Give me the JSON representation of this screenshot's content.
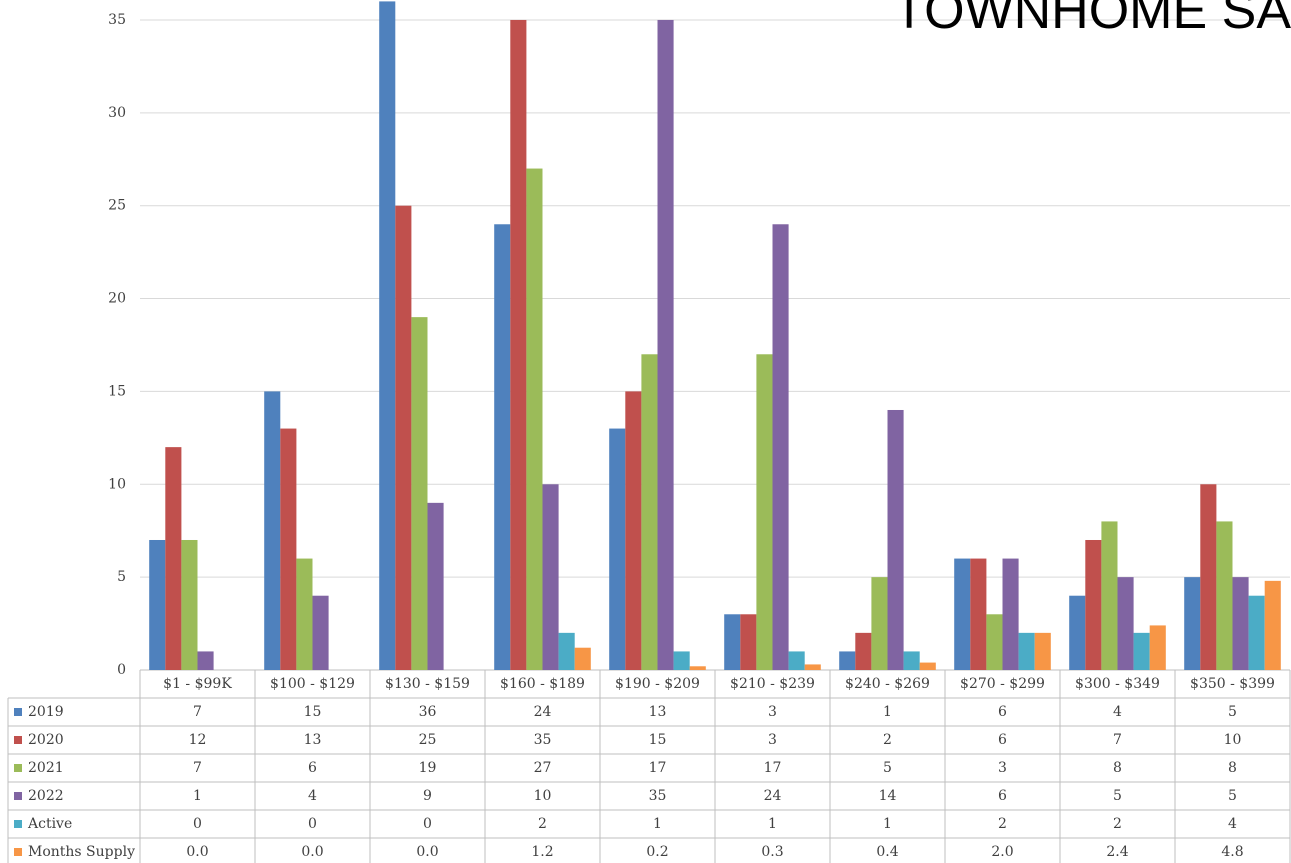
{
  "chart_data": {
    "type": "bar",
    "title": "TOWNHOME SA",
    "categories": [
      "$1 - $99K",
      "$100 - $129",
      "$130 - $159",
      "$160 - $189",
      "$190 - $209",
      "$210 - $239",
      "$240 - $269",
      "$270 - $299",
      "$300 - $349",
      "$350 - $399"
    ],
    "series": [
      {
        "name": "2019",
        "color": "#4f81bd",
        "values": [
          7,
          15,
          36,
          24,
          13,
          3,
          1,
          6,
          4,
          5
        ]
      },
      {
        "name": "2020",
        "color": "#c0504d",
        "values": [
          12,
          13,
          25,
          35,
          15,
          3,
          2,
          6,
          7,
          10
        ]
      },
      {
        "name": "2021",
        "color": "#9bbb59",
        "values": [
          7,
          6,
          19,
          27,
          17,
          17,
          5,
          3,
          8,
          8
        ]
      },
      {
        "name": "2022",
        "color": "#8064a2",
        "values": [
          1,
          4,
          9,
          10,
          35,
          24,
          14,
          6,
          5,
          5
        ]
      },
      {
        "name": "Active",
        "color": "#4bacc6",
        "values": [
          0,
          0,
          0,
          2,
          1,
          1,
          1,
          2,
          2,
          4
        ]
      },
      {
        "name": "Months Supply",
        "color": "#f79646",
        "values": [
          0,
          0,
          0,
          1.2,
          0.2,
          0.3,
          0.4,
          2.0,
          2.4,
          4.8
        ],
        "value_labels": [
          "0.0",
          "0.0",
          "0.0",
          "1.2",
          "0.2",
          "0.3",
          "0.4",
          "2.0",
          "2.4",
          "4.8"
        ]
      }
    ],
    "ylim": [
      0,
      36
    ],
    "yticks": [
      0,
      5,
      10,
      15,
      20,
      25,
      30,
      35
    ],
    "grid": true
  }
}
